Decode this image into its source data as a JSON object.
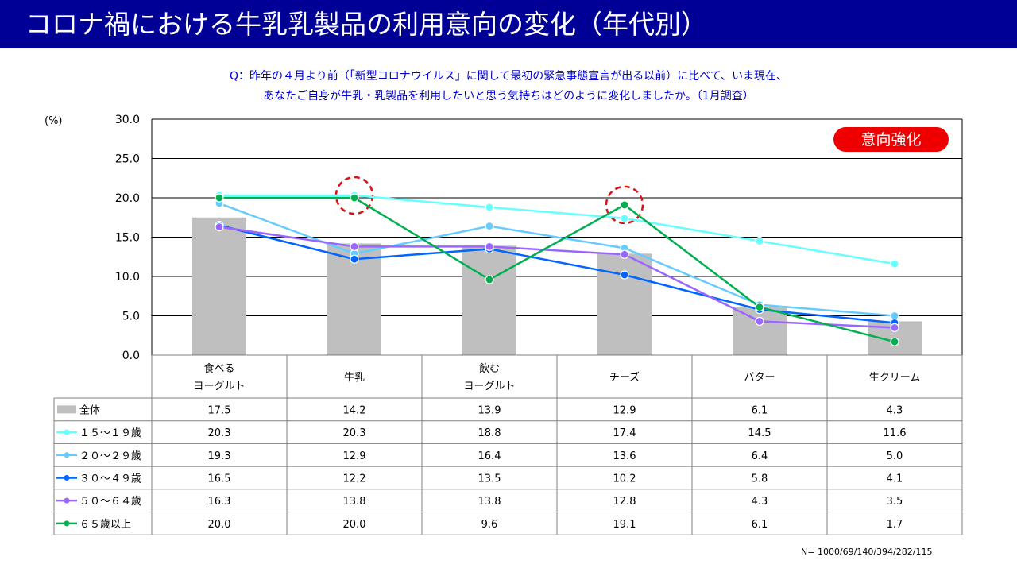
{
  "title": "コロナ禍における牛乳乳製品の利用意向の変化（年代別）",
  "question": {
    "line1": "Q：昨年の４月より前（「新型コロナウイルス」に関して最初の緊急事態宣言が出る以前）に比べて、いま現在、",
    "line2": "あなたご自身が牛乳・乳製品を利用したいと思う気持ちはどのように変化しましたか。（1月調査）"
  },
  "badge": "意向強化",
  "note": "N=  1000/69/140/394/282/115",
  "colors": {
    "title_bar": "#000096",
    "question_text": "#0000cc",
    "badge": "#ee0000",
    "highlight_circle": "#dd1111",
    "bar": "#bfbfbf"
  },
  "chart_data": {
    "type": "bar+line",
    "ylabel": "(%)",
    "ylim": [
      0,
      30
    ],
    "yticks": [
      "0.0",
      "5.0",
      "10.0",
      "15.0",
      "20.0",
      "25.0",
      "30.0"
    ],
    "grid": true,
    "categories": [
      [
        "食べる",
        "ヨーグルト"
      ],
      [
        "牛乳"
      ],
      [
        "飲む",
        "ヨーグルト"
      ],
      [
        "チーズ"
      ],
      [
        "バター"
      ],
      [
        "生クリーム"
      ]
    ],
    "bar_series": {
      "name": "全体",
      "color": "#bfbfbf",
      "values": [
        17.5,
        14.2,
        13.9,
        12.9,
        6.1,
        4.3
      ],
      "labels": [
        "17.5",
        "14.2",
        "13.9",
        "12.9",
        "6.1",
        "4.3"
      ]
    },
    "line_series": [
      {
        "name": "１５～１９歳",
        "color": "#66ffff",
        "values": [
          20.3,
          20.3,
          18.8,
          17.4,
          14.5,
          11.6
        ],
        "labels": [
          "20.3",
          "20.3",
          "18.8",
          "17.4",
          "14.5",
          "11.6"
        ]
      },
      {
        "name": "２０～２９歳",
        "color": "#66ccff",
        "values": [
          19.3,
          12.9,
          16.4,
          13.6,
          6.4,
          5.0
        ],
        "labels": [
          "19.3",
          "12.9",
          "16.4",
          "13.6",
          "6.4",
          "5.0"
        ]
      },
      {
        "name": "３０～４９歳",
        "color": "#0066ff",
        "values": [
          16.5,
          12.2,
          13.5,
          10.2,
          5.8,
          4.1
        ],
        "labels": [
          "16.5",
          "12.2",
          "13.5",
          "10.2",
          "5.8",
          "4.1"
        ]
      },
      {
        "name": "５０～６４歳",
        "color": "#9966ff",
        "values": [
          16.3,
          13.8,
          13.8,
          12.8,
          4.3,
          3.5
        ],
        "labels": [
          "16.3",
          "13.8",
          "13.8",
          "12.8",
          "4.3",
          "3.5"
        ]
      },
      {
        "name": "６５歳以上",
        "color": "#00b050",
        "values": [
          20.0,
          20.0,
          9.6,
          19.1,
          6.1,
          1.7
        ],
        "labels": [
          "20.0",
          "20.0",
          "9.6",
          "19.1",
          "6.1",
          "1.7"
        ]
      }
    ],
    "highlighted_categories": [
      "牛乳",
      "チーズ"
    ]
  }
}
